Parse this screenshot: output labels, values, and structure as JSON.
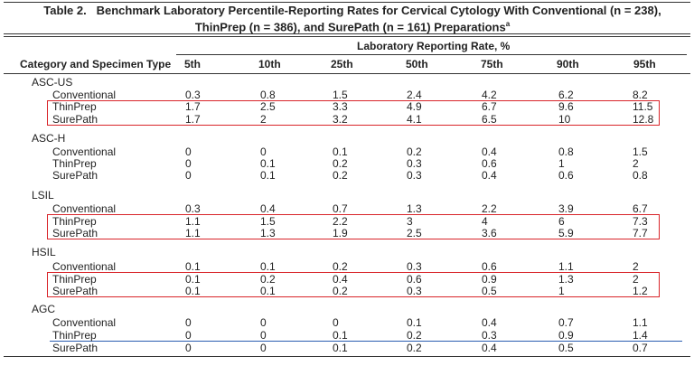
{
  "table": {
    "label": "Table 2.",
    "title": "Benchmark Laboratory Percentile-Reporting Rates for Cervical Cytology With Conventional (n = 238), ThinPrep (n = 386), and SurePath (n = 161) Preparations",
    "footnote_marker": "a",
    "group_header": "Laboratory Reporting Rate, %",
    "columns": [
      "Category and Specimen Type",
      "5th",
      "10th",
      "25th",
      "50th",
      "75th",
      "90th",
      "95th"
    ],
    "groups": [
      {
        "category": "ASC-US",
        "rows": [
          {
            "type": "Conventional",
            "values": [
              0.3,
              0.8,
              1.5,
              2.4,
              4.2,
              6.2,
              8.2
            ]
          },
          {
            "type": "ThinPrep",
            "values": [
              1.7,
              2.5,
              3.3,
              4.9,
              6.7,
              9.6,
              11.5
            ]
          },
          {
            "type": "SurePath",
            "values": [
              1.7,
              2,
              3.2,
              4.1,
              6.5,
              10,
              12.8
            ]
          }
        ]
      },
      {
        "category": "ASC-H",
        "rows": [
          {
            "type": "Conventional",
            "values": [
              0,
              0,
              0.1,
              0.2,
              0.4,
              0.8,
              1.5
            ]
          },
          {
            "type": "ThinPrep",
            "values": [
              0,
              0.1,
              0.2,
              0.3,
              0.6,
              1,
              2
            ]
          },
          {
            "type": "SurePath",
            "values": [
              0,
              0.1,
              0.2,
              0.3,
              0.4,
              0.6,
              0.8
            ]
          }
        ]
      },
      {
        "category": "LSIL",
        "rows": [
          {
            "type": "Conventional",
            "values": [
              0.3,
              0.4,
              0.7,
              1.3,
              2.2,
              3.9,
              6.7
            ]
          },
          {
            "type": "ThinPrep",
            "values": [
              1.1,
              1.5,
              2.2,
              3,
              4,
              6,
              7.3
            ]
          },
          {
            "type": "SurePath",
            "values": [
              1.1,
              1.3,
              1.9,
              2.5,
              3.6,
              5.9,
              7.7
            ]
          }
        ]
      },
      {
        "category": "HSIL",
        "rows": [
          {
            "type": "Conventional",
            "values": [
              0.1,
              0.1,
              0.2,
              0.3,
              0.6,
              1.1,
              2
            ]
          },
          {
            "type": "ThinPrep",
            "values": [
              0.1,
              0.2,
              0.4,
              0.6,
              0.9,
              1.3,
              2
            ]
          },
          {
            "type": "SurePath",
            "values": [
              0.1,
              0.1,
              0.2,
              0.3,
              0.5,
              1,
              1.2
            ]
          }
        ]
      },
      {
        "category": "AGC",
        "rows": [
          {
            "type": "Conventional",
            "values": [
              0,
              0,
              0,
              0.1,
              0.4,
              0.7,
              1.1
            ]
          },
          {
            "type": "ThinPrep",
            "values": [
              0,
              0,
              0.1,
              0.2,
              0.3,
              0.9,
              1.4
            ]
          },
          {
            "type": "SurePath",
            "values": [
              0,
              0,
              0.1,
              0.2,
              0.4,
              0.5,
              0.7
            ]
          }
        ]
      }
    ]
  }
}
